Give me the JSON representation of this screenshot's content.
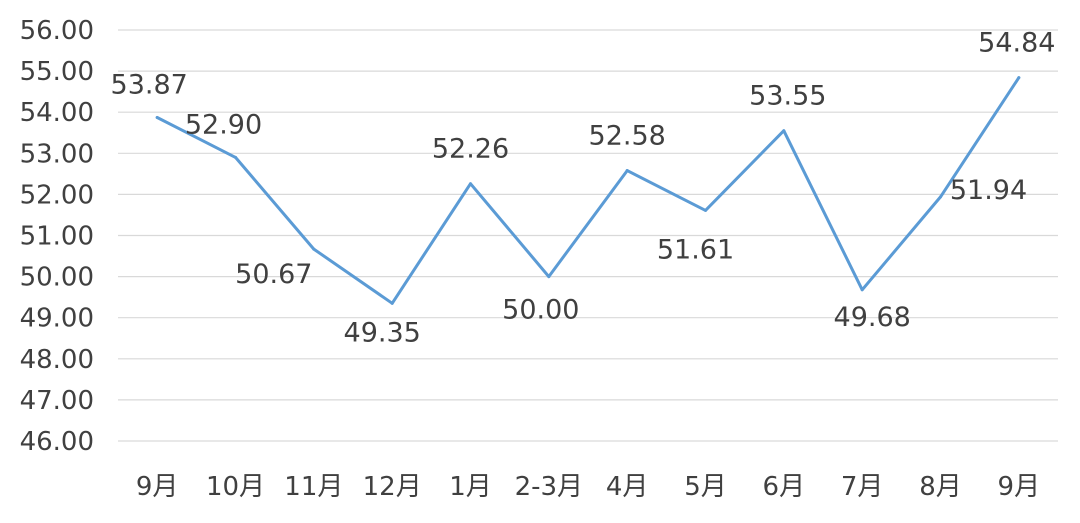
{
  "chart_data": {
    "type": "line",
    "title": "",
    "xlabel": "",
    "ylabel": "",
    "categories": [
      "9月",
      "10月",
      "11月",
      "12月",
      "1月",
      "2-3月",
      "4月",
      "5月",
      "6月",
      "7月",
      "8月",
      "9月"
    ],
    "series": [
      {
        "values": [
          53.87,
          52.9,
          50.67,
          49.35,
          52.26,
          50.0,
          52.58,
          51.61,
          53.55,
          49.68,
          51.94,
          54.84
        ],
        "color": "#5b9bd5"
      }
    ],
    "data_labels": [
      "53.87",
      "52.90",
      "50.67",
      "49.35",
      "52.26",
      "50.00",
      "52.58",
      "51.61",
      "53.55",
      "49.68",
      "51.94",
      "54.84"
    ],
    "ylim": [
      46,
      56
    ],
    "y_ticks": [
      46,
      47,
      48,
      49,
      50,
      51,
      52,
      53,
      54,
      55,
      56
    ],
    "y_tick_labels": [
      "46.00",
      "47.00",
      "48.00",
      "49.00",
      "50.00",
      "51.00",
      "52.00",
      "53.00",
      "54.00",
      "55.00",
      "56.00"
    ],
    "grid": true,
    "legend": "none"
  }
}
